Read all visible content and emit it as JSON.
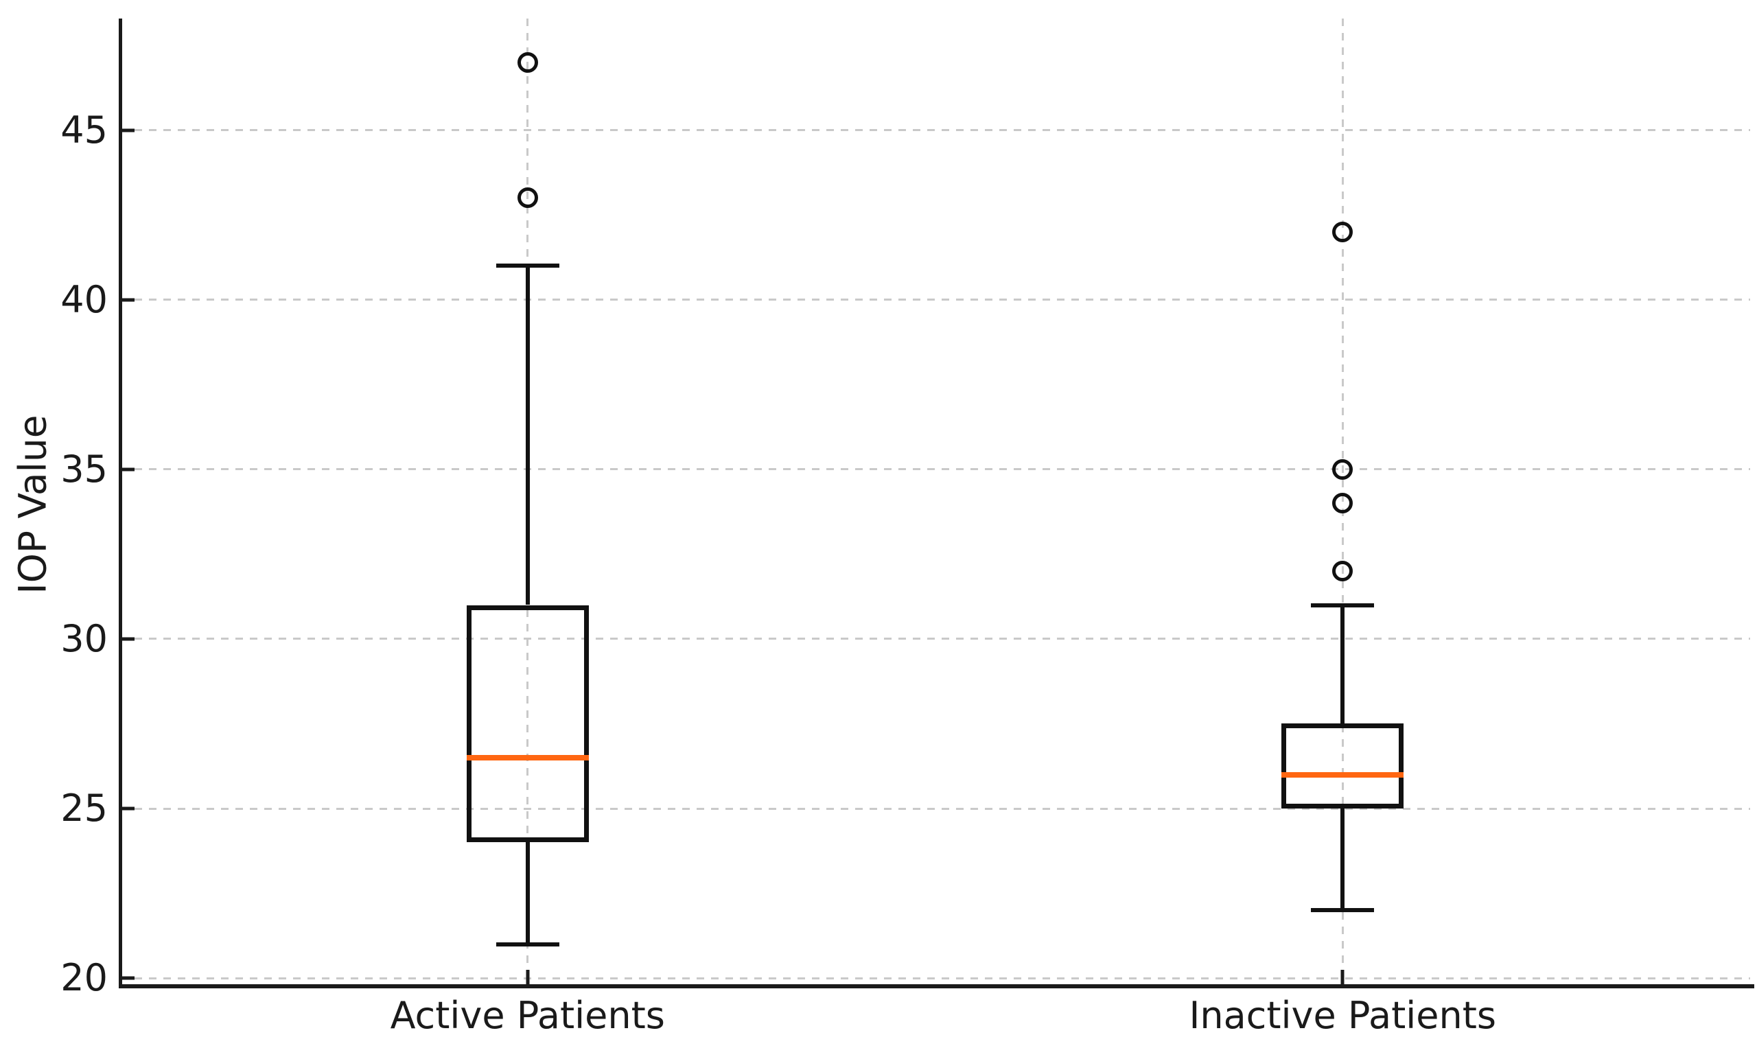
{
  "figure": {
    "background": "#ffffff"
  },
  "chart_data": {
    "type": "boxplot",
    "title": "",
    "xlabel": "",
    "ylabel": "IOP Value",
    "categories": [
      "Active Patients",
      "Inactive Patients"
    ],
    "x_positions": [
      1,
      2
    ],
    "xlim": [
      0.5,
      2.5
    ],
    "y_ticks": [
      20,
      25,
      30,
      35,
      40,
      45
    ],
    "ylim": [
      19.76,
      48.29
    ],
    "grid": {
      "horizontal": true,
      "vertical": true,
      "style": "dashed",
      "color": "#c9c9c9"
    },
    "legend": "none",
    "series": [
      {
        "name": "Active Patients",
        "whisker_low": 21,
        "q1": 24,
        "median": 26.5,
        "q3": 31,
        "whisker_high": 41,
        "outliers": [
          43,
          47
        ]
      },
      {
        "name": "Inactive Patients",
        "whisker_low": 22,
        "q1": 25,
        "median": 26,
        "q3": 27.5,
        "whisker_high": 31,
        "outliers": [
          32,
          34,
          35,
          42
        ]
      }
    ],
    "colors": {
      "box_edge": "#111111",
      "median": "#ff6611",
      "whisker": "#111111",
      "outlier_edge": "#111111",
      "axis": "#1a1a1a",
      "tick_label": "#1a1a1a",
      "grid": "#c9c9c9"
    }
  }
}
